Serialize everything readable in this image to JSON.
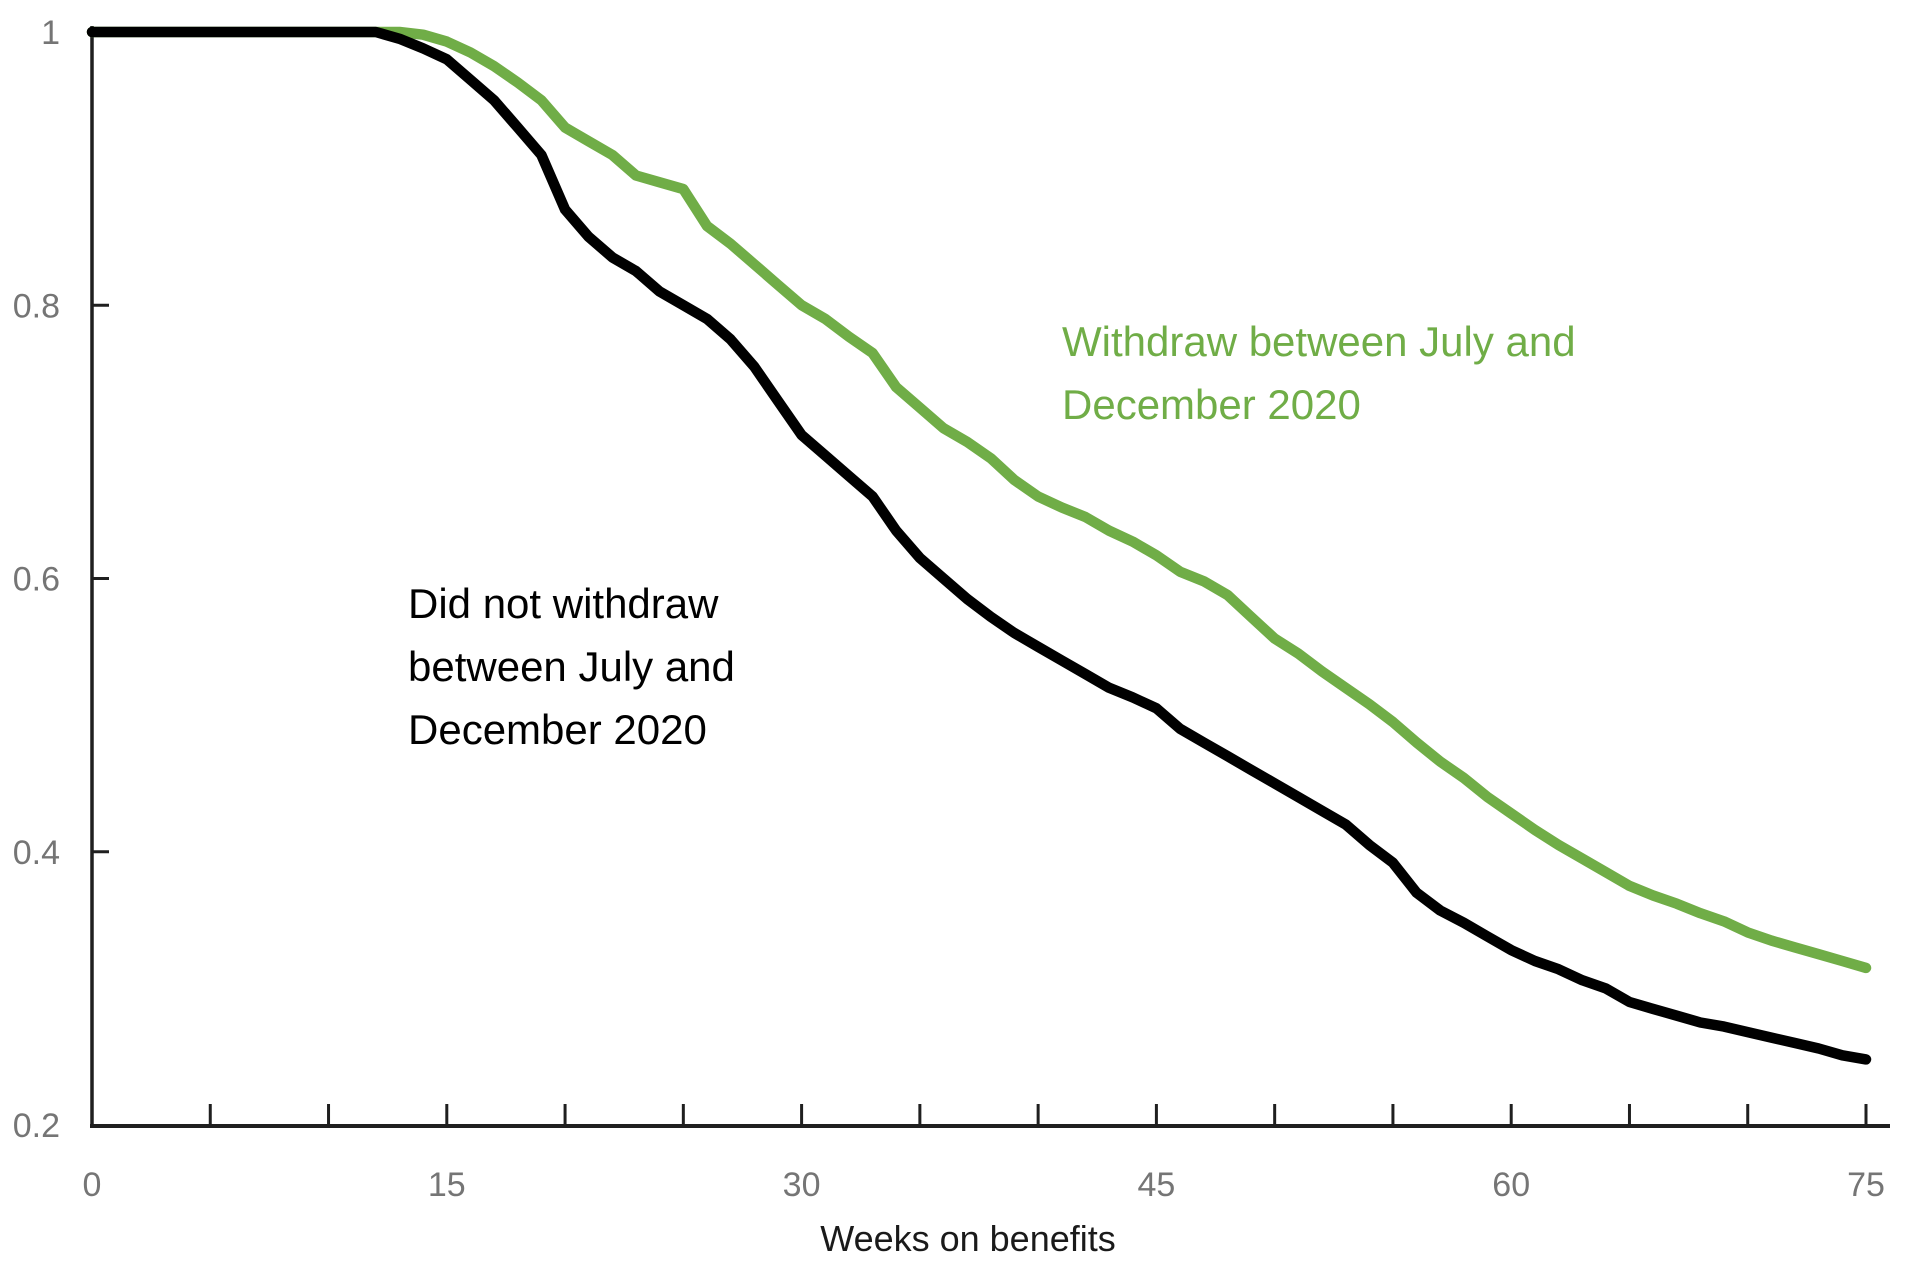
{
  "chart_data": {
    "type": "line",
    "title": "",
    "xlabel": "Weeks on benefits",
    "ylabel": "",
    "xlim": [
      0,
      75
    ],
    "ylim": [
      0.2,
      1.0
    ],
    "grid": false,
    "legend_position": "inline-annotations",
    "x_tick_values": [
      0,
      15,
      30,
      45,
      60,
      75
    ],
    "x_tick_labels": [
      "0",
      "15",
      "30",
      "45",
      "60",
      "75"
    ],
    "x_minor_tick_step": 5,
    "y_tick_values": [
      0.2,
      0.4,
      0.6,
      0.8,
      1.0
    ],
    "y_tick_labels": [
      "0.2",
      "0.4",
      "0.6",
      "0.8",
      "1"
    ],
    "x": [
      0,
      5,
      10,
      12,
      13,
      14,
      15,
      16,
      17,
      18,
      19,
      20,
      21,
      22,
      23,
      24,
      25,
      26,
      27,
      28,
      29,
      30,
      31,
      32,
      33,
      34,
      35,
      36,
      37,
      38,
      39,
      40,
      41,
      42,
      43,
      44,
      45,
      46,
      47,
      48,
      49,
      50,
      51,
      52,
      53,
      54,
      55,
      56,
      57,
      58,
      59,
      60,
      61,
      62,
      63,
      64,
      65,
      66,
      67,
      68,
      69,
      70,
      71,
      72,
      73,
      74,
      75
    ],
    "series": [
      {
        "key": "withdraw",
        "name": "Withdraw between July and December 2020",
        "color": "#70AD47",
        "values": [
          1,
          1,
          1,
          1,
          1,
          0.998,
          0.993,
          0.985,
          0.975,
          0.963,
          0.95,
          0.93,
          0.92,
          0.91,
          0.895,
          0.89,
          0.885,
          0.858,
          0.845,
          0.83,
          0.815,
          0.8,
          0.79,
          0.777,
          0.765,
          0.74,
          0.725,
          0.71,
          0.7,
          0.688,
          0.672,
          0.66,
          0.652,
          0.645,
          0.635,
          0.627,
          0.617,
          0.605,
          0.598,
          0.588,
          0.572,
          0.556,
          0.545,
          0.532,
          0.52,
          0.508,
          0.495,
          0.48,
          0.466,
          0.454,
          0.44,
          0.428,
          0.416,
          0.405,
          0.395,
          0.385,
          0.375,
          0.368,
          0.362,
          0.355,
          0.349,
          0.341,
          0.335,
          0.33,
          0.325,
          0.32,
          0.315
        ]
      },
      {
        "key": "did-not-withdraw",
        "name": "Did not withdraw between July and December 2020",
        "color": "#000000",
        "values": [
          1,
          1,
          1,
          1,
          0.995,
          0.988,
          0.98,
          0.965,
          0.95,
          0.93,
          0.91,
          0.87,
          0.85,
          0.835,
          0.825,
          0.81,
          0.8,
          0.79,
          0.775,
          0.755,
          0.73,
          0.705,
          0.69,
          0.675,
          0.66,
          0.635,
          0.615,
          0.6,
          0.585,
          0.572,
          0.56,
          0.55,
          0.54,
          0.53,
          0.52,
          0.513,
          0.505,
          0.49,
          0.48,
          0.47,
          0.46,
          0.45,
          0.44,
          0.43,
          0.42,
          0.405,
          0.392,
          0.37,
          0.357,
          0.348,
          0.338,
          0.328,
          0.32,
          0.314,
          0.306,
          0.3,
          0.29,
          0.285,
          0.28,
          0.275,
          0.272,
          0.268,
          0.264,
          0.26,
          0.256,
          0.251,
          0.248
        ]
      }
    ],
    "annotations": {
      "withdraw": {
        "color": "#70AD47",
        "lines": [
          "Withdraw between July and",
          "December 2020"
        ]
      },
      "did_not_withdraw": {
        "color": "#000000",
        "lines": [
          "Did not withdraw",
          "between July and",
          "December 2020"
        ]
      }
    }
  },
  "colors": {
    "background": "#ffffff",
    "axis_line": "#1f1f1f",
    "tick_label": "#757575",
    "axis_title": "#1a1a1a"
  }
}
